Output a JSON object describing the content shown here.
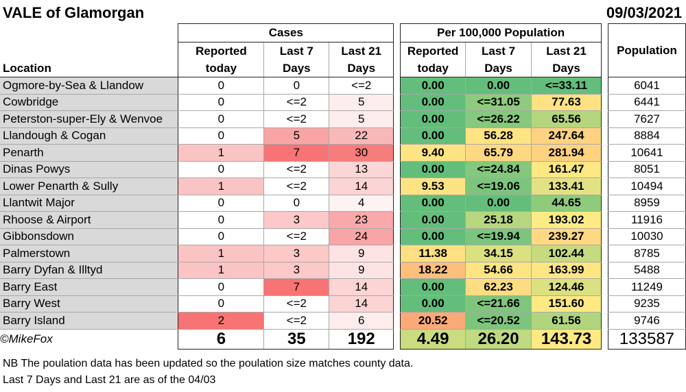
{
  "title": "VALE of Glamorgan",
  "date": "09/03/2021",
  "headers": {
    "location": "Location",
    "cases_group": "Cases",
    "per100k_group": "Per 100,000 Population",
    "population": "Population",
    "reported_today_1": "Reported",
    "reported_today_2": "today",
    "last7_1": "Last 7",
    "last7_2": "Days",
    "last21_1": "Last 21",
    "last21_2": "Days"
  },
  "rows": [
    {
      "location": "Ogmore-by-Sea & Llandow",
      "c_today": "0",
      "c_7": "0",
      "c_21": "<=2",
      "p_today": "0.00",
      "p_7": "0.00",
      "p_21": "<=33.11",
      "population": "6041",
      "bg": [
        "#ffffff",
        "#ffffff",
        "#ffffff",
        "#63be7b",
        "#63be7b",
        "#63be7b"
      ]
    },
    {
      "location": "Cowbridge",
      "c_today": "0",
      "c_7": "<=2",
      "c_21": "5",
      "p_today": "0.00",
      "p_7": "<=31.05",
      "p_21": "77.63",
      "population": "6441",
      "bg": [
        "#ffffff",
        "#ffffff",
        "#fdeded",
        "#63be7b",
        "#8ecb7d",
        "#fde283"
      ]
    },
    {
      "location": "Peterston-super-Ely & Wenvoe",
      "c_today": "0",
      "c_7": "<=2",
      "c_21": "5",
      "p_today": "0.00",
      "p_7": "<=26.22",
      "p_21": "65.56",
      "population": "7627",
      "bg": [
        "#ffffff",
        "#ffffff",
        "#fdeded",
        "#63be7b",
        "#86c87d",
        "#b5d67f"
      ]
    },
    {
      "location": "Llandough & Cogan",
      "c_today": "0",
      "c_7": "5",
      "c_21": "22",
      "p_today": "0.00",
      "p_7": "56.28",
      "p_21": "247.64",
      "population": "8884",
      "bg": [
        "#ffffff",
        "#f9a5a5",
        "#fab9b9",
        "#63be7b",
        "#fee482",
        "#fed280"
      ]
    },
    {
      "location": "Penarth",
      "c_today": "1",
      "c_7": "7",
      "c_21": "30",
      "p_today": "9.40",
      "p_7": "65.79",
      "p_21": "281.94",
      "population": "10641",
      "bg": [
        "#fbc4c4",
        "#f87373",
        "#f77c7c",
        "#fde483",
        "#fed981",
        "#ffd27f"
      ]
    },
    {
      "location": "Dinas Powys",
      "c_today": "0",
      "c_7": "<=2",
      "c_21": "13",
      "p_today": "0.00",
      "p_7": "<=24.84",
      "p_21": "161.47",
      "population": "8051",
      "bg": [
        "#ffffff",
        "#ffffff",
        "#fcd6d6",
        "#63be7b",
        "#84c87d",
        "#fee883"
      ]
    },
    {
      "location": "Lower Penarth & Sully",
      "c_today": "1",
      "c_7": "<=2",
      "c_21": "14",
      "p_today": "9.53",
      "p_7": "<=19.06",
      "p_21": "133.41",
      "population": "10494",
      "bg": [
        "#fbc4c4",
        "#ffffff",
        "#fcd4d4",
        "#fde483",
        "#7bc57c",
        "#e3e282"
      ]
    },
    {
      "location": "Llantwit Major",
      "c_today": "0",
      "c_7": "0",
      "c_21": "4",
      "p_today": "0.00",
      "p_7": "0.00",
      "p_21": "44.65",
      "population": "8959",
      "bg": [
        "#ffffff",
        "#ffffff",
        "#fef2f2",
        "#63be7b",
        "#63be7b",
        "#8fcb7d"
      ]
    },
    {
      "location": "Rhoose & Airport",
      "c_today": "0",
      "c_7": "3",
      "c_21": "23",
      "p_today": "0.00",
      "p_7": "25.18",
      "p_21": "193.02",
      "population": "11916",
      "bg": [
        "#ffffff",
        "#fcc8c8",
        "#f9a9a9",
        "#63be7b",
        "#b7d67f",
        "#feeb84"
      ]
    },
    {
      "location": "Gibbonsdown",
      "c_today": "0",
      "c_7": "<=2",
      "c_21": "24",
      "p_today": "0.00",
      "p_7": "<=19.94",
      "p_21": "239.27",
      "population": "10030",
      "bg": [
        "#ffffff",
        "#ffffff",
        "#f9a5a5",
        "#63be7b",
        "#7bc57c",
        "#fed981"
      ]
    },
    {
      "location": "Palmerstown",
      "c_today": "1",
      "c_7": "3",
      "c_21": "9",
      "p_today": "11.38",
      "p_7": "34.15",
      "p_21": "102.44",
      "population": "8785",
      "bg": [
        "#fbc4c4",
        "#fcc8c8",
        "#fde3e3",
        "#fee082",
        "#dbe081",
        "#c6db80"
      ]
    },
    {
      "location": "Barry Dyfan & Illtyd",
      "c_today": "1",
      "c_7": "3",
      "c_21": "9",
      "p_today": "18.22",
      "p_7": "54.66",
      "p_21": "163.99",
      "population": "5488",
      "bg": [
        "#fbc4c4",
        "#fcc8c8",
        "#fde3e3",
        "#fcbf7c",
        "#fee582",
        "#fee683"
      ]
    },
    {
      "location": "Barry East",
      "c_today": "0",
      "c_7": "7",
      "c_21": "14",
      "p_today": "0.00",
      "p_7": "62.23",
      "p_21": "124.46",
      "population": "11249",
      "bg": [
        "#ffffff",
        "#f87373",
        "#fcd4d4",
        "#63be7b",
        "#fedc81",
        "#dbe081"
      ]
    },
    {
      "location": "Barry West",
      "c_today": "0",
      "c_7": "<=2",
      "c_21": "14",
      "p_today": "0.00",
      "p_7": "<=21.66",
      "p_21": "151.60",
      "population": "9235",
      "bg": [
        "#ffffff",
        "#ffffff",
        "#fcd4d4",
        "#63be7b",
        "#7fc67c",
        "#fee983"
      ]
    },
    {
      "location": "Barry Island",
      "c_today": "2",
      "c_7": "<=2",
      "c_21": "6",
      "p_today": "20.52",
      "p_7": "<=20.52",
      "p_21": "61.56",
      "population": "9746",
      "bg": [
        "#f87373",
        "#ffffff",
        "#fdecec",
        "#fbaa77",
        "#7dc57c",
        "#b1d57f"
      ]
    }
  ],
  "totals": {
    "credit": "©MikeFox",
    "c_today": "6",
    "c_7": "35",
    "c_21": "192",
    "p_today": "4.49",
    "p_7": "26.20",
    "p_21": "143.73",
    "population": "133587",
    "bg": [
      "#ffffff",
      "#ffffff",
      "#ffffff",
      "#c9dc80",
      "#bfda80",
      "#fee983"
    ]
  },
  "notes": [
    "NB The poulation data has been updated so the poulation size matches county data.",
    "Last 7 Days and Last 21 are as of the 04/03"
  ]
}
